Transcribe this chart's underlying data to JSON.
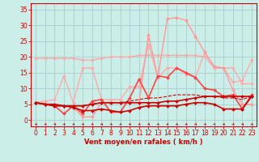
{
  "bg_color": "#cceee8",
  "grid_color": "#aacccc",
  "xlabel": "Vent moyen/en rafales ( km/h )",
  "x_ticks": [
    0,
    1,
    2,
    3,
    4,
    5,
    6,
    7,
    8,
    9,
    10,
    11,
    12,
    13,
    14,
    15,
    16,
    17,
    18,
    19,
    20,
    21,
    22,
    23
  ],
  "ylim": [
    -2,
    37
  ],
  "yticks": [
    0,
    5,
    10,
    15,
    20,
    25,
    30,
    35
  ],
  "series": [
    {
      "name": "flat_light_top",
      "color": "#ffaaaa",
      "lw": 1.0,
      "marker": "D",
      "ms": 2.0,
      "ls": "-",
      "y": [
        19.5,
        19.5,
        19.5,
        19.5,
        19.5,
        19.0,
        19.0,
        19.5,
        20.0,
        20.0,
        20.0,
        20.5,
        20.5,
        20.5,
        20.5,
        20.5,
        20.5,
        20.5,
        20.0,
        16.5,
        16.5,
        12.0,
        12.5,
        19.0
      ]
    },
    {
      "name": "zigzag_light",
      "color": "#ffaaaa",
      "lw": 1.0,
      "marker": "D",
      "ms": 2.0,
      "ls": "-",
      "y": [
        5.5,
        6.0,
        6.5,
        14.0,
        5.5,
        16.5,
        16.5,
        6.5,
        6.5,
        6.5,
        10.5,
        10.5,
        24.0,
        13.5,
        16.5,
        16.5,
        14.5,
        13.5,
        21.5,
        16.5,
        16.5,
        16.5,
        11.5,
        11.5
      ]
    },
    {
      "name": "peak_light",
      "color": "#ff9999",
      "lw": 1.0,
      "marker": "D",
      "ms": 2.0,
      "ls": "-",
      "y": [
        5.5,
        5.0,
        4.5,
        4.5,
        4.0,
        1.0,
        1.0,
        5.5,
        5.5,
        5.5,
        5.5,
        5.5,
        27.0,
        13.5,
        32.0,
        32.5,
        31.5,
        26.5,
        21.5,
        17.0,
        16.5,
        9.5,
        5.0,
        5.0
      ]
    },
    {
      "name": "mid_bold",
      "color": "#ff4444",
      "lw": 1.2,
      "marker": "D",
      "ms": 2.0,
      "ls": "-",
      "y": [
        5.5,
        5.0,
        4.5,
        2.0,
        4.5,
        2.0,
        6.0,
        6.5,
        2.5,
        2.5,
        7.0,
        13.0,
        7.0,
        14.0,
        13.5,
        16.5,
        15.0,
        13.5,
        10.0,
        9.5,
        7.5,
        8.0,
        3.5,
        8.0
      ]
    },
    {
      "name": "rising_dark1",
      "color": "#cc0000",
      "lw": 1.2,
      "marker": "D",
      "ms": 2.0,
      "ls": "-",
      "y": [
        5.5,
        5.0,
        5.0,
        4.5,
        4.5,
        4.5,
        5.0,
        5.5,
        5.5,
        5.5,
        5.5,
        5.5,
        5.5,
        5.5,
        6.0,
        6.0,
        6.5,
        7.0,
        7.5,
        7.5,
        7.5,
        7.5,
        7.5,
        7.5
      ]
    },
    {
      "name": "low_dark",
      "color": "#cc0000",
      "lw": 1.2,
      "marker": "D",
      "ms": 2.0,
      "ls": "-",
      "y": [
        5.5,
        5.0,
        4.5,
        4.5,
        4.0,
        3.0,
        3.0,
        3.5,
        3.0,
        2.5,
        3.0,
        4.0,
        4.5,
        4.5,
        4.5,
        4.5,
        5.0,
        5.5,
        5.5,
        5.0,
        3.5,
        3.5,
        3.5,
        7.5
      ]
    },
    {
      "name": "dashed_rising",
      "color": "#cc0000",
      "lw": 0.8,
      "marker": "None",
      "ms": 0,
      "ls": "--",
      "y": [
        5.5,
        5.0,
        4.5,
        4.5,
        4.5,
        4.5,
        5.0,
        5.5,
        5.5,
        5.5,
        6.0,
        6.5,
        7.0,
        7.0,
        7.5,
        8.0,
        8.0,
        8.0,
        7.5,
        7.5,
        7.0,
        7.0,
        6.5,
        7.5
      ]
    }
  ],
  "arrow_color": "#cc0000",
  "xlabel_fontsize": 6,
  "tick_fontsize": 5.5
}
